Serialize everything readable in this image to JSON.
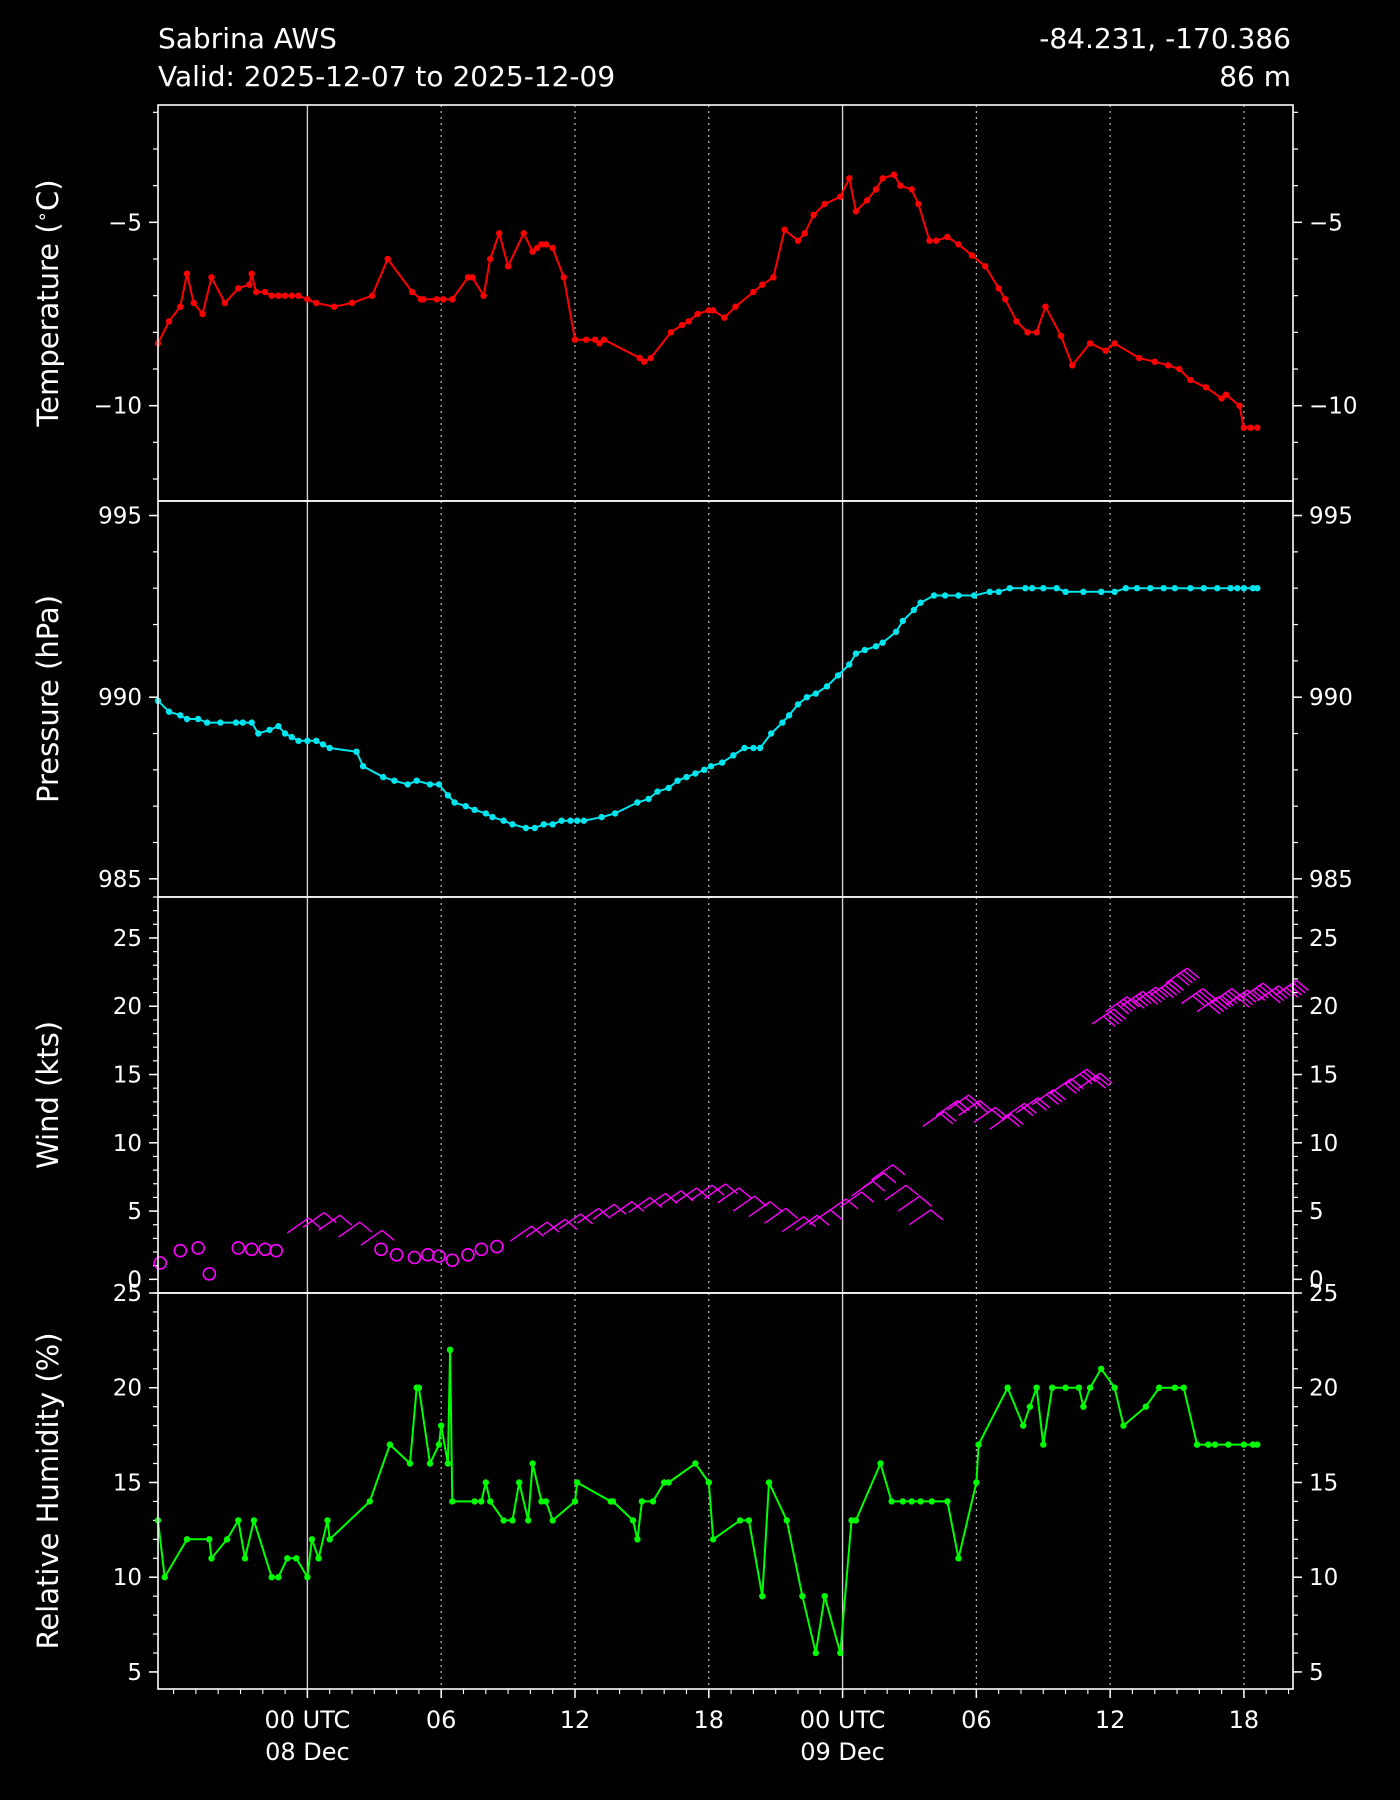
{
  "header": {
    "station": "Sabrina AWS",
    "valid": "Valid: 2025-12-07 to 2025-12-09",
    "coords": "-84.231, -170.386",
    "elevation": "86 m"
  },
  "colors": {
    "background": "#000000",
    "temperature": "#ff0000",
    "pressure": "#00e5ee",
    "wind": "#ff00ff",
    "humidity": "#00ff00",
    "axes": "#ffffff"
  },
  "chart_data": {
    "type": "line",
    "x_axis": {
      "unit": "hours since 2025-12-07 00 UTC",
      "xlim": [
        17.3,
        68.2
      ],
      "ticks": [
        {
          "x": 24,
          "label": "00 UTC",
          "sublabel": "08 Dec"
        },
        {
          "x": 30,
          "label": "06"
        },
        {
          "x": 36,
          "label": "12"
        },
        {
          "x": 42,
          "label": "18"
        },
        {
          "x": 48,
          "label": "00 UTC",
          "sublabel": "09 Dec"
        },
        {
          "x": 54,
          "label": "06"
        },
        {
          "x": 60,
          "label": "12"
        },
        {
          "x": 66,
          "label": "18"
        }
      ],
      "grid": "dotted at 6h, solid at 00 UTC"
    },
    "panels": [
      {
        "name": "temperature",
        "ylabel": "Temperature ($^\\circ$C)",
        "ylim": [
          -12.6,
          -1.8
        ],
        "yticks": [
          -5,
          -10
        ],
        "ytick_labels": [
          "−5",
          "−10"
        ],
        "x": [
          17.3,
          17.8,
          18.3,
          18.6,
          18.9,
          19.3,
          19.7,
          20.3,
          20.9,
          21.4,
          21.5,
          21.7,
          22.1,
          22.4,
          22.7,
          23.0,
          23.3,
          23.6,
          24.0,
          24.4,
          25.2,
          26.0,
          26.9,
          27.6,
          28.7,
          29.1,
          29.2,
          29.8,
          30.1,
          30.5,
          31.2,
          31.4,
          31.9,
          32.2,
          32.6,
          33.0,
          33.7,
          34.1,
          34.3,
          34.5,
          34.7,
          35.0,
          35.5,
          36.0,
          36.5,
          36.9,
          37.1,
          37.3,
          38.9,
          39.1,
          39.4,
          40.3,
          40.8,
          41.1,
          41.5,
          42.0,
          42.2,
          42.7,
          43.2,
          44.0,
          44.4,
          44.9,
          45.4,
          46.0,
          46.3,
          46.7,
          47.2,
          47.9,
          48.3,
          48.6,
          49.1,
          49.5,
          49.8,
          50.3,
          50.6,
          51.1,
          51.4,
          51.9,
          52.2,
          52.7,
          53.2,
          53.8,
          54.4,
          55.0,
          55.3,
          55.8,
          56.3,
          56.7,
          57.1,
          57.8,
          58.3,
          59.1,
          59.8,
          60.2,
          61.3,
          62.0,
          62.6,
          63.1,
          63.6,
          64.3,
          65.0,
          65.2,
          65.8,
          66.0,
          66.3,
          66.6
        ],
        "y": [
          -8.3,
          -7.7,
          -7.3,
          -6.4,
          -7.2,
          -7.5,
          -6.5,
          -7.2,
          -6.8,
          -6.7,
          -6.4,
          -6.9,
          -6.9,
          -7.0,
          -7.0,
          -7.0,
          -7.0,
          -7.0,
          -7.1,
          -7.2,
          -7.3,
          -7.2,
          -7.0,
          -6.0,
          -6.9,
          -7.1,
          -7.1,
          -7.1,
          -7.1,
          -7.1,
          -6.5,
          -6.5,
          -7.0,
          -6.0,
          -5.3,
          -6.2,
          -5.3,
          -5.8,
          -5.7,
          -5.6,
          -5.6,
          -5.7,
          -6.5,
          -8.2,
          -8.2,
          -8.2,
          -8.3,
          -8.2,
          -8.7,
          -8.8,
          -8.7,
          -8.0,
          -7.8,
          -7.7,
          -7.5,
          -7.4,
          -7.4,
          -7.6,
          -7.3,
          -6.9,
          -6.7,
          -6.5,
          -5.2,
          -5.5,
          -5.3,
          -4.8,
          -4.5,
          -4.3,
          -3.8,
          -4.7,
          -4.4,
          -4.1,
          -3.8,
          -3.7,
          -4.0,
          -4.1,
          -4.5,
          -5.5,
          -5.5,
          -5.4,
          -5.6,
          -5.9,
          -6.2,
          -6.8,
          -7.1,
          -7.7,
          -8.0,
          -8.0,
          -7.3,
          -8.1,
          -8.9,
          -8.3,
          -8.5,
          -8.3,
          -8.7,
          -8.8,
          -8.9,
          -9.0,
          -9.3,
          -9.5,
          -9.8,
          -9.7,
          -10.0,
          -10.6,
          -10.6,
          -10.6
        ]
      },
      {
        "name": "pressure",
        "ylabel": "Pressure (hPa)",
        "ylim": [
          984.5,
          995.4
        ],
        "yticks": [
          985,
          990,
          995
        ],
        "ytick_labels": [
          "985",
          "990",
          "995"
        ],
        "x": [
          17.3,
          17.8,
          18.3,
          18.6,
          19.1,
          19.5,
          20.1,
          20.8,
          21.1,
          21.5,
          21.8,
          22.3,
          22.7,
          23.0,
          23.3,
          23.6,
          24.0,
          24.4,
          24.7,
          25.0,
          26.2,
          26.5,
          27.4,
          27.9,
          28.5,
          28.9,
          29.5,
          29.9,
          30.3,
          30.6,
          31.1,
          31.5,
          32.0,
          32.3,
          32.8,
          33.2,
          33.8,
          34.2,
          34.6,
          35.0,
          35.4,
          35.8,
          36.1,
          36.4,
          37.2,
          37.8,
          38.8,
          39.3,
          39.7,
          40.2,
          40.6,
          41.0,
          41.4,
          41.8,
          42.1,
          42.6,
          43.1,
          43.6,
          44.0,
          44.3,
          44.8,
          45.3,
          45.6,
          46.0,
          46.4,
          46.8,
          47.3,
          47.8,
          48.3,
          48.6,
          49.0,
          49.5,
          49.8,
          50.4,
          50.7,
          51.2,
          51.5,
          52.1,
          52.6,
          53.2,
          53.9,
          54.6,
          55.0,
          55.5,
          56.2,
          56.5,
          57.0,
          57.6,
          58.0,
          58.8,
          59.6,
          60.2,
          60.7,
          61.2,
          61.8,
          62.4,
          62.9,
          63.6,
          64.2,
          64.8,
          65.4,
          65.7,
          66.0,
          66.4,
          66.6
        ],
        "y": [
          989.9,
          989.6,
          989.5,
          989.4,
          989.4,
          989.3,
          989.3,
          989.3,
          989.3,
          989.3,
          989.0,
          989.1,
          989.2,
          989.0,
          988.9,
          988.8,
          988.8,
          988.8,
          988.7,
          988.6,
          988.5,
          988.1,
          987.8,
          987.7,
          987.6,
          987.7,
          987.6,
          987.6,
          987.3,
          987.1,
          987.0,
          986.9,
          986.8,
          986.7,
          986.6,
          986.5,
          986.4,
          986.4,
          986.5,
          986.5,
          986.6,
          986.6,
          986.6,
          986.6,
          986.7,
          986.8,
          987.1,
          987.2,
          987.4,
          987.5,
          987.7,
          987.8,
          987.9,
          988.0,
          988.1,
          988.2,
          988.4,
          988.6,
          988.6,
          988.6,
          989.0,
          989.3,
          989.5,
          989.8,
          990.0,
          990.1,
          990.3,
          990.6,
          990.9,
          991.2,
          991.3,
          991.4,
          991.5,
          991.8,
          992.1,
          992.4,
          992.6,
          992.8,
          992.8,
          992.8,
          992.8,
          992.9,
          992.9,
          993.0,
          993.0,
          993.0,
          993.0,
          993.0,
          992.9,
          992.9,
          992.9,
          992.9,
          993.0,
          993.0,
          993.0,
          993.0,
          993.0,
          993.0,
          993.0,
          993.0,
          993.0,
          993.0,
          993.0,
          993.0,
          993.0
        ]
      },
      {
        "name": "wind",
        "ylabel": "Wind (kts)",
        "ylim": [
          -1,
          28
        ],
        "yticks": [
          0,
          5,
          10,
          15,
          20,
          25
        ],
        "ytick_labels": [
          "0",
          "5",
          "10",
          "15",
          "20",
          "25"
        ],
        "calm_symbol": "circle",
        "x": [
          17.4,
          18.3,
          19.1,
          19.6,
          20.9,
          21.5,
          22.1,
          22.6,
          23.1,
          23.8,
          24.5,
          25.4,
          26.4,
          27.3,
          28.0,
          28.8,
          29.4,
          29.9,
          30.5,
          31.2,
          31.8,
          32.5,
          33.1,
          33.8,
          34.6,
          35.3,
          36.1,
          36.8,
          37.6,
          38.4,
          39.1,
          39.8,
          40.5,
          41.2,
          41.8,
          42.4,
          43.1,
          43.8,
          44.5,
          45.3,
          45.9,
          46.5,
          47.2,
          47.9,
          48.4,
          48.9,
          49.3,
          49.9,
          50.5,
          51.0,
          51.6,
          52.2,
          52.7,
          53.2,
          53.9,
          54.6,
          55.2,
          55.8,
          56.5,
          57.3,
          58.0,
          58.6,
          59.2,
          59.8,
          60.5,
          61.1,
          61.8,
          62.5,
          63.2,
          63.9,
          64.5,
          65.2,
          65.9,
          66.6,
          67.4
        ],
        "y": [
          1.2,
          2.1,
          2.3,
          0.4,
          2.3,
          2.2,
          2.2,
          2.1,
          3.4,
          3.8,
          3.6,
          3.1,
          2.5,
          2.2,
          1.8,
          1.6,
          1.8,
          1.7,
          1.4,
          1.8,
          2.2,
          2.4,
          2.8,
          3.1,
          3.3,
          3.7,
          4.1,
          4.4,
          4.6,
          4.9,
          5.2,
          5.4,
          5.6,
          5.8,
          5.9,
          5.6,
          5.0,
          4.6,
          4.1,
          3.5,
          3.6,
          4.0,
          4.8,
          5.3,
          6.1,
          6.7,
          7.3,
          5.8,
          5.0,
          4.0,
          11.2,
          12.0,
          12.4,
          12.0,
          11.5,
          11.0,
          11.8,
          12.2,
          12.8,
          13.6,
          14.3,
          14.0,
          18.7,
          19.6,
          20.0,
          20.3,
          20.8,
          21.7,
          20.2,
          19.6,
          20.2,
          20.1,
          20.6,
          20.4,
          20.8
        ]
      },
      {
        "name": "humidity",
        "ylabel": "Relative Humidity (%)",
        "ylim": [
          4.1,
          25
        ],
        "yticks": [
          5,
          10,
          15,
          20,
          25
        ],
        "ytick_labels": [
          "5",
          "10",
          "15",
          "20",
          "25"
        ],
        "x": [
          17.3,
          17.6,
          18.6,
          19.6,
          19.7,
          20.4,
          20.9,
          21.2,
          21.6,
          22.4,
          22.7,
          23.1,
          23.5,
          24.0,
          24.2,
          24.5,
          24.9,
          25.0,
          26.8,
          27.7,
          28.6,
          28.9,
          29.0,
          29.5,
          29.9,
          30.0,
          30.3,
          30.4,
          30.5,
          31.5,
          31.8,
          32.0,
          32.2,
          32.8,
          33.2,
          33.5,
          33.9,
          34.1,
          34.5,
          34.7,
          35.0,
          36.0,
          36.1,
          37.6,
          37.7,
          38.6,
          38.8,
          39.0,
          39.5,
          40.0,
          40.2,
          41.4,
          42.0,
          42.2,
          43.4,
          43.8,
          44.4,
          44.7,
          45.5,
          46.2,
          46.8,
          47.2,
          47.9,
          48.4,
          48.6,
          49.7,
          50.2,
          50.7,
          51.1,
          51.5,
          52.0,
          52.7,
          53.2,
          54.0,
          54.1,
          55.4,
          56.1,
          56.4,
          56.7,
          57.0,
          57.4,
          58.0,
          58.6,
          58.8,
          59.1,
          59.6,
          60.2,
          60.6,
          61.6,
          62.2,
          62.9,
          63.3,
          63.9,
          64.4,
          64.7,
          65.3,
          66.0,
          66.4,
          66.6
        ],
        "y": [
          13,
          10,
          12,
          12,
          11,
          12,
          13,
          11,
          13,
          10,
          10,
          11,
          11,
          10,
          12,
          11,
          13,
          12,
          14,
          17,
          16,
          20,
          20,
          16,
          17,
          18,
          16,
          22,
          14,
          14,
          14,
          15,
          14,
          13,
          13,
          15,
          13,
          16,
          14,
          14,
          13,
          14,
          15,
          14,
          14,
          13,
          12,
          14,
          14,
          15,
          15,
          16,
          15,
          12,
          13,
          13,
          9,
          15,
          13,
          9,
          6,
          9,
          6,
          13,
          13,
          16,
          14,
          14,
          14,
          14,
          14,
          14,
          11,
          15,
          17,
          20,
          18,
          19,
          20,
          17,
          20,
          20,
          20,
          19,
          20,
          21,
          20,
          18,
          19,
          20,
          20,
          20,
          17,
          17,
          17,
          17,
          17,
          17,
          17
        ]
      }
    ]
  }
}
